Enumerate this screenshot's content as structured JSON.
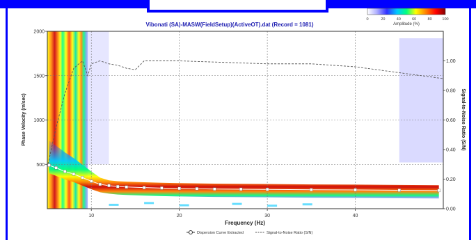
{
  "chart_data": {
    "type": "heatmap",
    "title": "Vibonati (SA)-MASW(FieldSetup)(ActiveOT).dat (Record = 1081)",
    "xlabel": "Frequency (Hz)",
    "ylabel": "Phase Velocity (m/sec)",
    "y2label": "Signal-to-Noise Ratio (S/N)",
    "xlim": [
      5,
      50
    ],
    "ylim": [
      0,
      2000
    ],
    "y2lim": [
      0,
      1.2
    ],
    "x_ticks": [
      "10",
      "20",
      "30",
      "40"
    ],
    "y_ticks": [
      "500",
      "1000",
      "1500",
      "2000"
    ],
    "y2_ticks": [
      "0.00",
      "0.20",
      "0.40",
      "0.60",
      "0.80",
      "1.00"
    ],
    "colorbar": {
      "label": "Amplitude (%)",
      "ticks": [
        "0",
        "20",
        "40",
        "60",
        "80",
        "100"
      ],
      "colors": [
        "#ffffff",
        "#b0b0ff",
        "#3030ff",
        "#00c8ff",
        "#00ff80",
        "#ffff00",
        "#ff8000",
        "#ff0000",
        "#800000"
      ]
    },
    "legend": {
      "position": "bottom",
      "entries": [
        "Dispersion Curve Extracted",
        "Signal-to-Noise Ratio (S/N)"
      ]
    },
    "grid": true,
    "series": [
      {
        "name": "Dispersion Curve Extracted",
        "type": "line-marker",
        "color": "#ffffff",
        "x": [
          5.2,
          6,
          7,
          8,
          9,
          10,
          11,
          12,
          13,
          14,
          16,
          18,
          20,
          22,
          24,
          27,
          30,
          35,
          40,
          45,
          49.5
        ],
        "y": [
          490,
          460,
          420,
          390,
          350,
          310,
          275,
          260,
          250,
          245,
          238,
          232,
          228,
          225,
          222,
          220,
          218,
          214,
          212,
          208,
          205
        ]
      },
      {
        "name": "Signal-to-Noise Ratio (S/N)",
        "type": "dashed-line",
        "axis": "right",
        "color": "#555555",
        "x": [
          5,
          6,
          7,
          8,
          9,
          9.6,
          10,
          10.5,
          11,
          12,
          13,
          14,
          15,
          16,
          20,
          25,
          30,
          35,
          40,
          45,
          50
        ],
        "y": [
          0.28,
          0.55,
          0.78,
          0.95,
          1.0,
          0.9,
          0.98,
          0.99,
          1.0,
          0.98,
          0.97,
          0.95,
          0.94,
          1.0,
          1.0,
          0.99,
          0.98,
          0.98,
          0.96,
          0.92,
          0.88
        ]
      }
    ],
    "heatmap_bands": [
      {
        "x": [
          5,
          9.6
        ],
        "level": "high"
      },
      {
        "x": [
          9.6,
          50
        ],
        "level": "curve-ridge"
      }
    ]
  },
  "ui": {
    "top_bar_color": "#0000ff"
  }
}
